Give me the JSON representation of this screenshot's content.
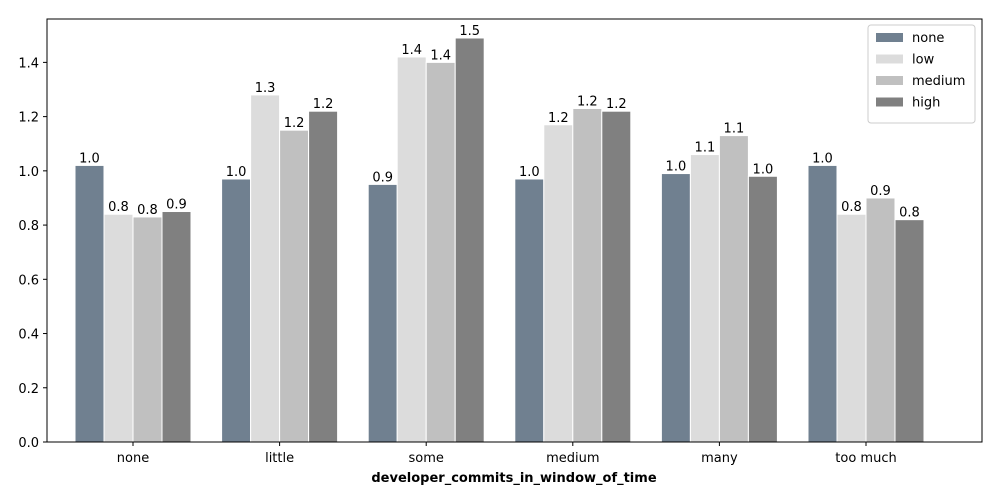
{
  "chart_data": {
    "type": "bar",
    "xlabel": "developer_commits_in_window_of_time",
    "ylabel": "",
    "categories": [
      "none",
      "little",
      "some",
      "medium",
      "many",
      "too much"
    ],
    "ylim": [
      0,
      1.56
    ],
    "yticks": [
      0.0,
      0.2,
      0.4,
      0.6,
      0.8,
      1.0,
      1.2,
      1.4
    ],
    "ytick_labels": [
      "0.0",
      "0.2",
      "0.4",
      "0.6",
      "0.8",
      "1.0",
      "1.2",
      "1.4"
    ],
    "grid": false,
    "legend_position": "top-right",
    "series": [
      {
        "name": "none",
        "color": "#708090",
        "values": [
          1.02,
          0.97,
          0.95,
          0.97,
          0.99,
          1.02
        ],
        "labels": [
          "1.0",
          "1.0",
          "0.9",
          "1.0",
          "1.0",
          "1.0"
        ]
      },
      {
        "name": "low",
        "color": "#dcdcdc",
        "values": [
          0.84,
          1.28,
          1.42,
          1.17,
          1.06,
          0.84
        ],
        "labels": [
          "0.8",
          "1.3",
          "1.4",
          "1.2",
          "1.1",
          "0.8"
        ]
      },
      {
        "name": "medium",
        "color": "#c0c0c0",
        "values": [
          0.83,
          1.15,
          1.4,
          1.23,
          1.13,
          0.9
        ],
        "labels": [
          "0.8",
          "1.2",
          "1.4",
          "1.2",
          "1.1",
          "0.9"
        ]
      },
      {
        "name": "high",
        "color": "#808080",
        "values": [
          0.85,
          1.22,
          1.49,
          1.22,
          0.98,
          0.82
        ],
        "labels": [
          "0.9",
          "1.2",
          "1.5",
          "1.2",
          "1.0",
          "0.8"
        ]
      }
    ]
  }
}
